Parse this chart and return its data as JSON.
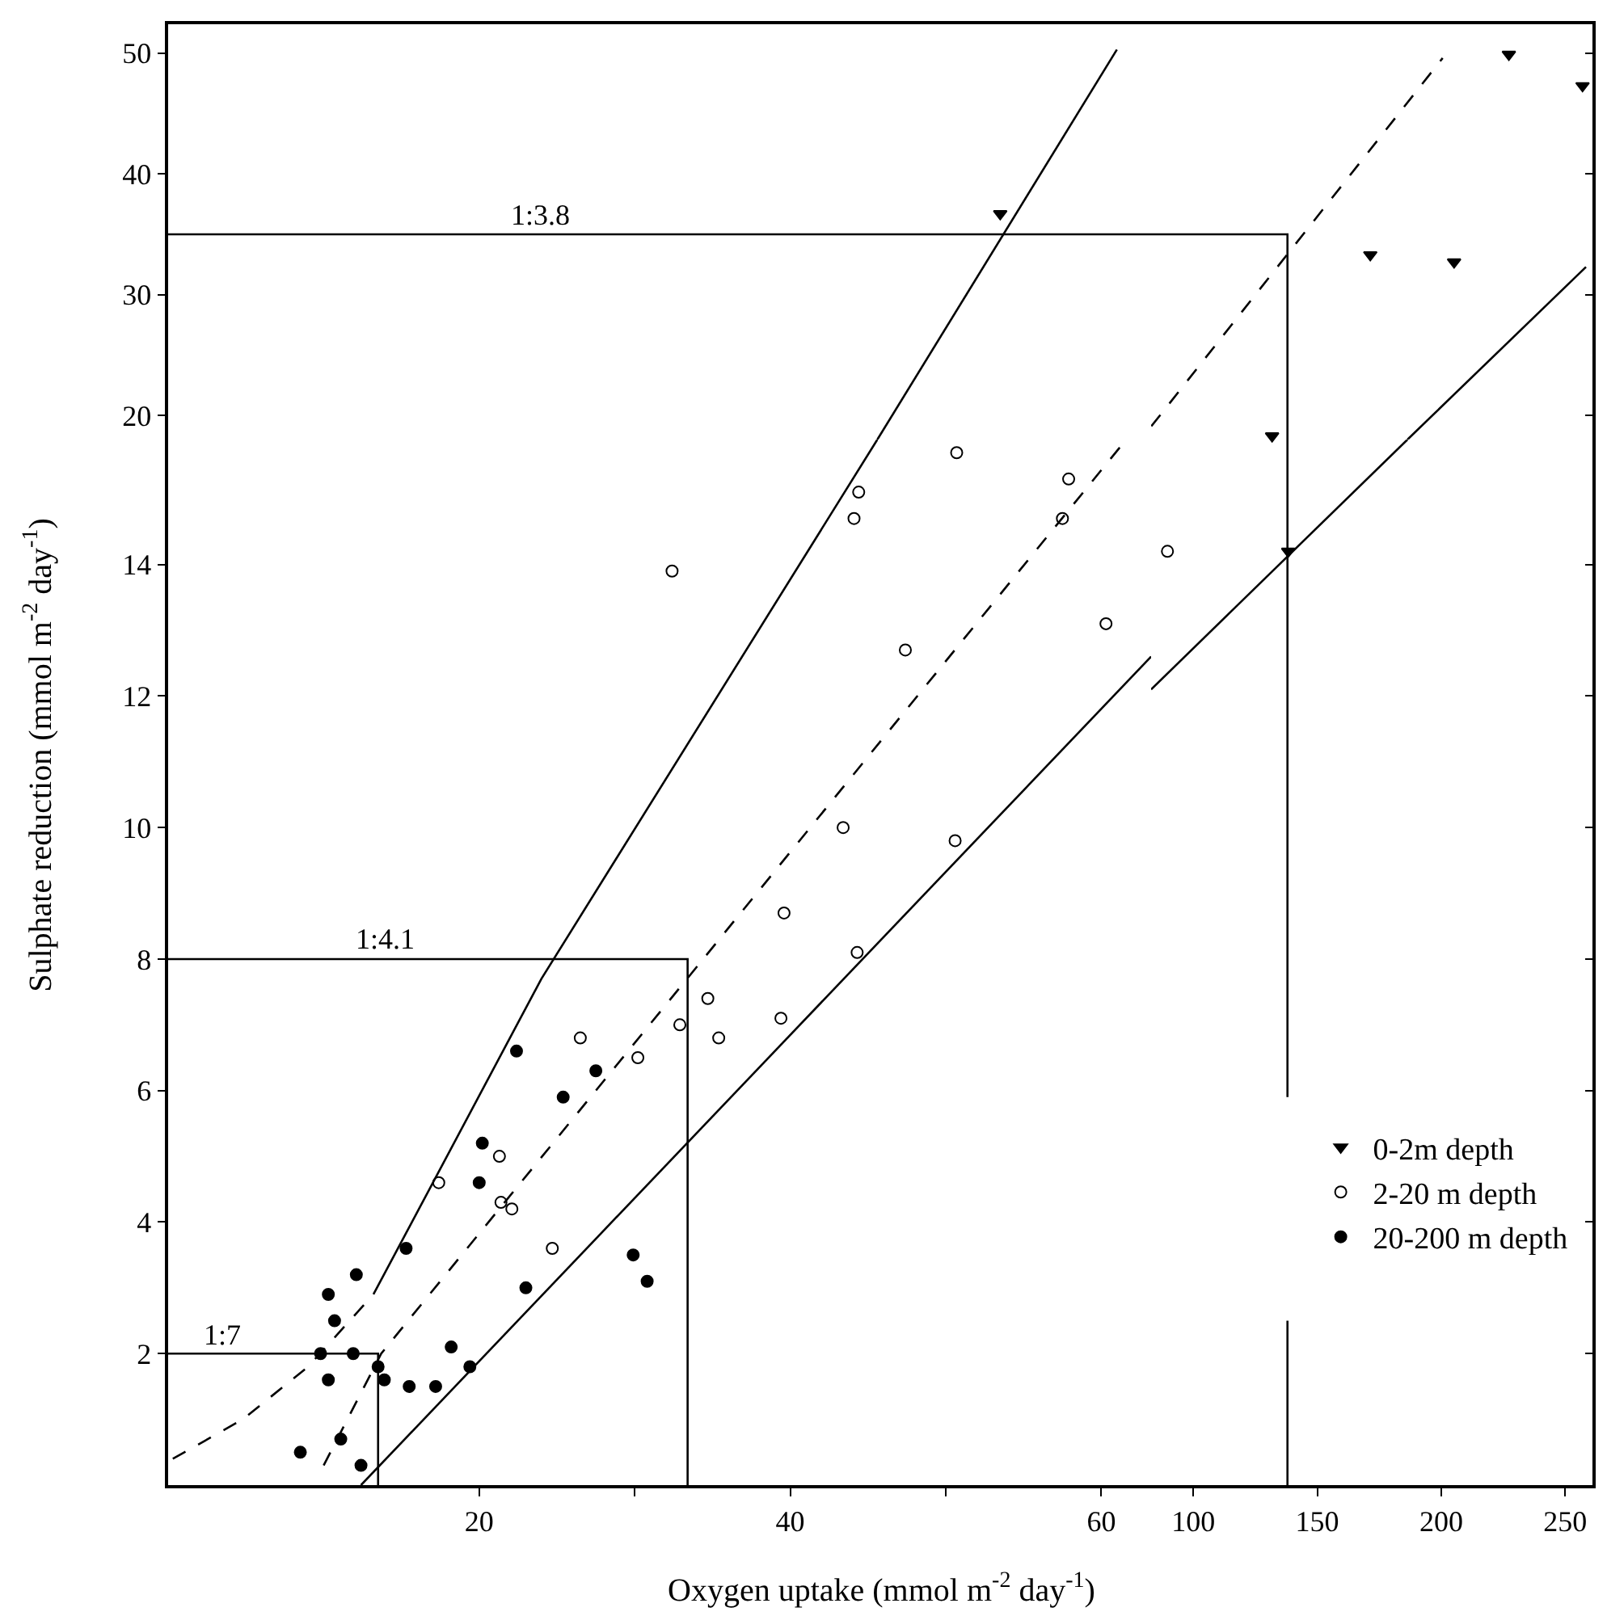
{
  "chart_data": [
    {
      "type": "scatter",
      "xlim": [
        0,
        63.2
      ],
      "ylim": [
        18,
        52.4
      ],
      "yticks": [
        20,
        30,
        40,
        50
      ],
      "tick_labels": "y",
      "annotations": [
        {
          "text": "1:3.8",
          "x": 24,
          "y": 35
        }
      ],
      "series": [
        {
          "type": "line",
          "line_style": "solid",
          "color": "#000000",
          "x": [
            0,
            63.2
          ],
          "values": [
            35,
            35
          ]
        },
        {
          "type": "line",
          "line_style": "solid",
          "color": "#000000",
          "x": [
            45.6,
            61.0
          ],
          "values": [
            18,
            50.3
          ]
        },
        {
          "name": "0-2m depth",
          "marker": "triangle",
          "color": "#000000",
          "x": [
            53.5
          ],
          "values": [
            36.7
          ]
        }
      ]
    },
    {
      "type": "scatter",
      "xlim": [
        83,
        261
      ],
      "ylim": [
        18,
        52.4
      ],
      "yticks": [
        20,
        30,
        40,
        50
      ],
      "tick_labels": false,
      "series": [
        {
          "type": "line",
          "line_style": "solid",
          "color": "#000000",
          "x": [
            83,
            138,
            138
          ],
          "values": [
            35,
            35,
            18
          ]
        },
        {
          "type": "line",
          "line_style": "dashed",
          "color": "#000000",
          "x": [
            83.1,
            200.6
          ],
          "values": [
            19.1,
            49.6
          ]
        },
        {
          "type": "line",
          "line_style": "solid",
          "color": "#000000",
          "x": [
            186.4,
            258.4
          ],
          "values": [
            18,
            32.3
          ]
        },
        {
          "name": "0-2m depth",
          "marker": "triangle",
          "color": "#000000",
          "x": [
            131.8,
            171.4,
            205.2,
            227.3,
            257.0
          ],
          "values": [
            18.3,
            33.3,
            32.7,
            49.9,
            47.3
          ]
        }
      ]
    },
    {
      "type": "scatter",
      "xlim": [
        0,
        63.2
      ],
      "ylim": [
        0,
        15.9
      ],
      "xticks": [
        20,
        {
          "value": 30,
          "label": null
        },
        40,
        {
          "value": 50,
          "label": null
        },
        60
      ],
      "yticks": [
        2,
        4,
        6,
        8,
        10,
        12,
        14
      ],
      "legend": "bottom right",
      "xlabel": "Oxygen uptake (mmol m$^{-2}$ day$^{-1}$)",
      "ylabel": "Sulphate reduction (mmol m$^{-2}$ day$^{-1}$)",
      "annotations": [
        {
          "text": "1:4.1",
          "x": 14,
          "y": 8
        },
        {
          "text": "1:7",
          "x": 3.5,
          "y": 2
        }
      ],
      "series": [
        {
          "type": "line",
          "line_style": "solid",
          "color": "#000000",
          "x": [
            0,
            13.5,
            13.5
          ],
          "values": [
            2,
            2,
            0
          ]
        },
        {
          "type": "line",
          "line_style": "solid",
          "color": "#000000",
          "x": [
            0,
            33.4,
            33.4
          ],
          "values": [
            8,
            8,
            0
          ]
        },
        {
          "type": "line",
          "line_style": "dashed",
          "color": "#000000",
          "x": [
            0.3,
            4.8,
            9.0,
            13.2
          ],
          "values": [
            0.4,
            1.0,
            1.8,
            2.9
          ]
        },
        {
          "type": "line",
          "line_style": "solid",
          "color": "#000000",
          "x": [
            13.2,
            24.0,
            45.6
          ],
          "values": [
            2.9,
            7.7,
            15.9
          ]
        },
        {
          "type": "line",
          "line_style": "dashed",
          "color": "#000000",
          "x": [
            10,
            13.7,
            34.4,
            61.6
          ],
          "values": [
            0.3,
            2.0,
            8.0,
            15.9
          ]
        },
        {
          "type": "line",
          "line_style": "solid",
          "color": "#000000",
          "x": [
            12.4,
            63.2
          ],
          "values": [
            0,
            12.6
          ]
        },
        {
          "name": "2-20 m depth",
          "marker": "circle-open",
          "color": "#000000",
          "x": [
            17.4,
            21.3,
            21.4,
            22.1,
            24.7,
            26.5,
            30.2,
            32.9,
            34.7,
            35.4,
            39.4,
            39.6,
            44.3,
            43.4,
            50.6,
            47.4,
            32.4,
            60.3,
            44.1,
            44.4,
            50.7,
            57.5,
            57.9
          ],
          "values": [
            4.6,
            5.0,
            4.3,
            4.2,
            3.6,
            6.8,
            6.5,
            7.0,
            7.4,
            6.8,
            7.1,
            8.7,
            8.1,
            10.0,
            9.8,
            12.7,
            13.9,
            13.1,
            14.7,
            15.1,
            15.7,
            14.7,
            15.3
          ]
        },
        {
          "name": "20-200 m depth",
          "marker": "circle",
          "color": "#000000",
          "x": [
            22.4,
            27.5,
            25.4,
            20.2,
            20.0,
            15.3,
            23.0,
            29.9,
            30.8,
            12.1,
            10.3,
            10.7,
            9.8,
            11.9,
            13.5,
            10.3,
            13.9,
            15.5,
            17.2,
            18.2,
            19.4,
            11.1,
            8.5,
            12.4
          ],
          "values": [
            6.6,
            6.3,
            5.9,
            5.2,
            4.6,
            3.6,
            3.0,
            3.5,
            3.1,
            3.2,
            2.9,
            2.5,
            2.0,
            2.0,
            1.8,
            1.6,
            1.6,
            1.5,
            1.5,
            2.1,
            1.8,
            0.7,
            0.5,
            0.3
          ]
        }
      ]
    },
    {
      "type": "scatter",
      "xlim": [
        83,
        261
      ],
      "ylim": [
        0,
        15.9
      ],
      "xticks": [
        100,
        150,
        200,
        250
      ],
      "yticks": [
        2,
        4,
        6,
        8,
        10,
        12,
        14
      ],
      "tick_labels": "x",
      "series": [
        {
          "type": "line",
          "line_style": "solid",
          "color": "#000000",
          "x": [
            138,
            138
          ],
          "values": [
            0,
            2.5
          ]
        },
        {
          "type": "line",
          "line_style": "solid",
          "color": "#000000",
          "x": [
            138,
            138
          ],
          "values": [
            5.9,
            15.9
          ]
        },
        {
          "type": "line",
          "line_style": "solid",
          "color": "#000000",
          "x": [
            83,
            186.4
          ],
          "values": [
            12.1,
            15.9
          ]
        },
        {
          "name": "0-2m depth",
          "marker": "triangle",
          "color": "#000000",
          "x": [
            138.3
          ],
          "values": [
            14.2
          ]
        },
        {
          "name": "2-20 m depth",
          "marker": "circle-open",
          "color": "#000000",
          "x": [
            89.6
          ],
          "values": [
            14.2
          ]
        }
      ]
    }
  ]
}
